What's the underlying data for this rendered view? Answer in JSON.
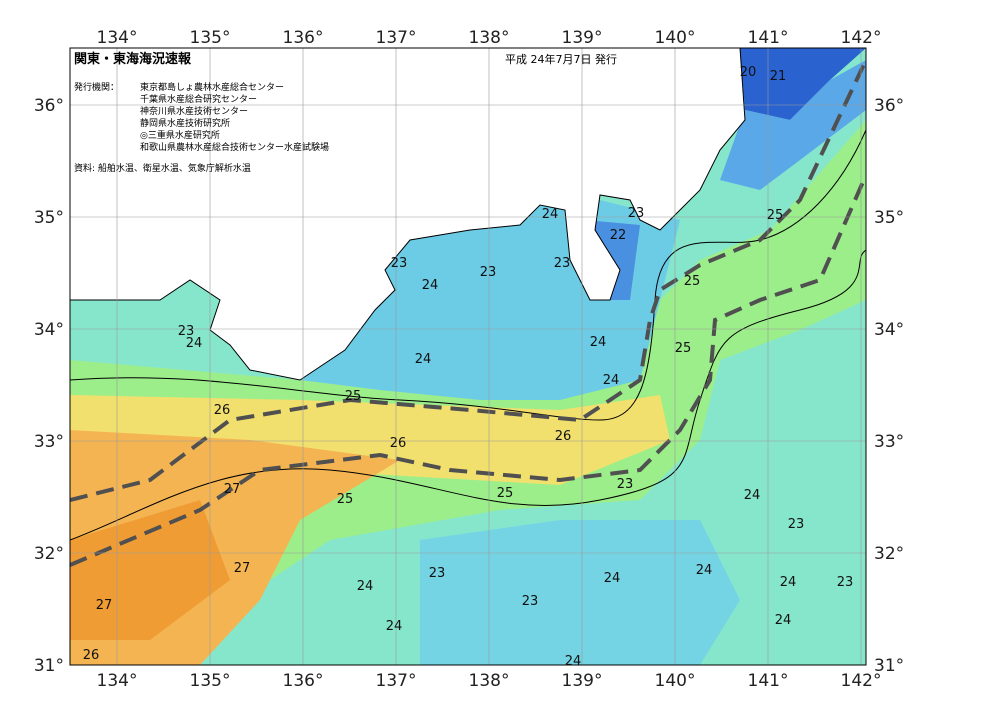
{
  "header": {
    "title": "関東・東海海況速報",
    "date": "平成 24年7月7日 発行"
  },
  "publisher": {
    "label": "発行機関：",
    "institutions": [
      "東京都島しょ農林水産総合センター",
      "千葉県水産総合研究センター",
      "神奈川県水産技術センター",
      "静岡県水産技術研究所",
      "◎三重県水産研究所",
      "和歌山県農林水産総合技術センター水産試験場"
    ]
  },
  "source": "資料: 船舶水温、衛星水温、気象庁解析水温",
  "lon_labels": [
    "134°",
    "135°",
    "136°",
    "137°",
    "138°",
    "139°",
    "140°",
    "141°",
    "142°"
  ],
  "lat_labels": [
    "36°",
    "35°",
    "34°",
    "33°",
    "32°",
    "31°"
  ],
  "contour_labels": [
    "20",
    "21",
    "24",
    "23",
    "25",
    "22",
    "23",
    "23",
    "23",
    "24",
    "25",
    "23",
    "24",
    "24",
    "25",
    "24",
    "24",
    "25",
    "26",
    "26",
    "26",
    "23",
    "27",
    "25",
    "25",
    "24",
    "23",
    "27",
    "23",
    "24",
    "24",
    "24",
    "24",
    "23",
    "23",
    "27",
    "24",
    "24",
    "26",
    "24"
  ]
}
